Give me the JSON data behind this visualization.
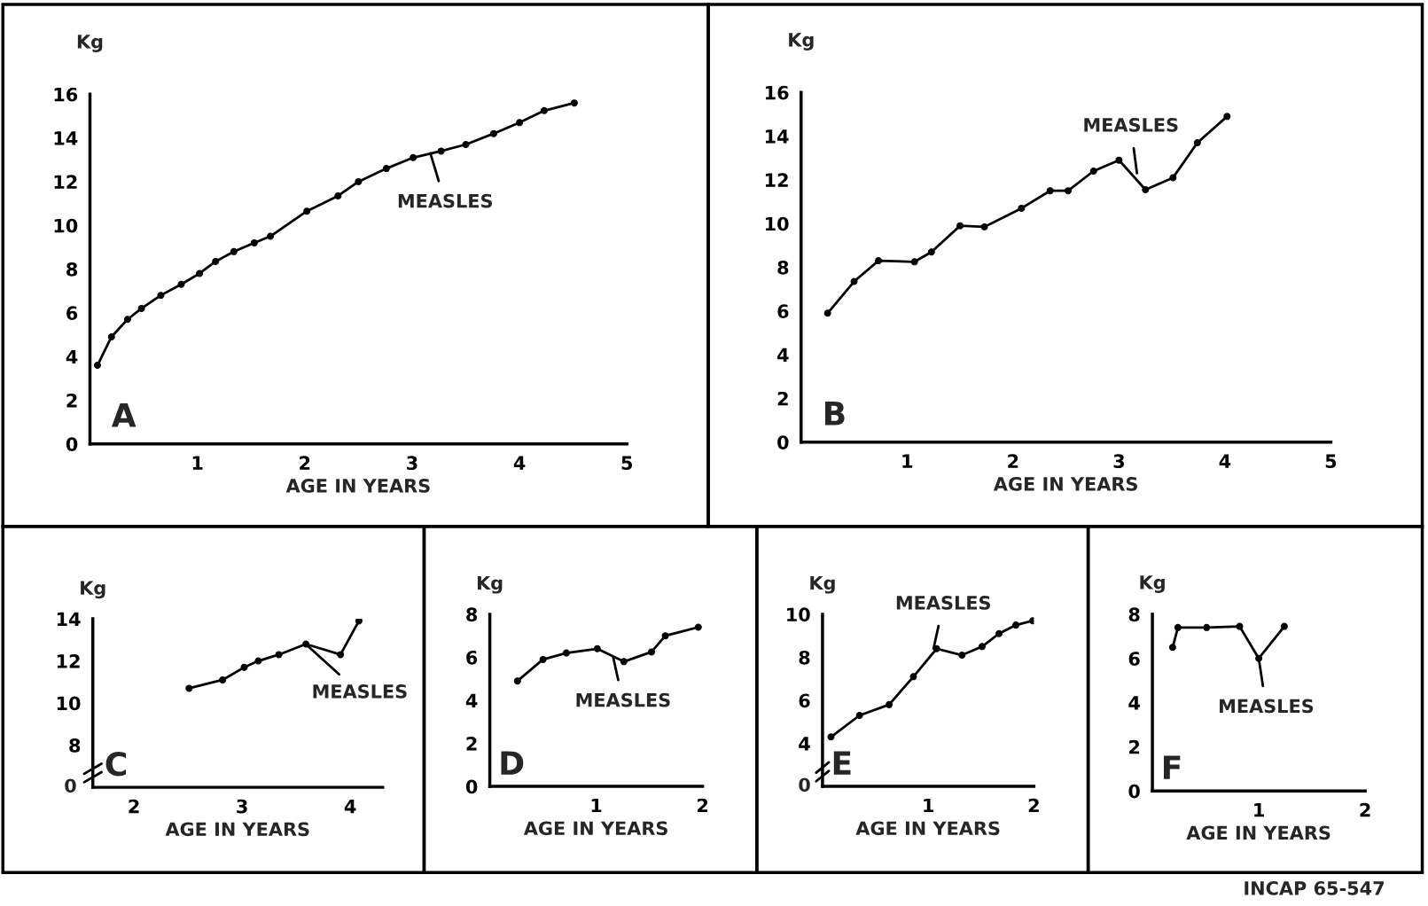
{
  "chart_data": [
    {
      "type": "line",
      "xlabel": "AGE IN YEARS",
      "ylabel": "Kg",
      "xlim": [
        0,
        5
      ],
      "ylim": [
        0,
        16
      ],
      "xticks": [
        1,
        2,
        3,
        4,
        5
      ],
      "yticks": [
        0,
        2,
        4,
        6,
        8,
        10,
        12,
        14,
        16
      ],
      "marker": "circle",
      "line_style": "solid",
      "x": [
        0.07,
        0.2,
        0.35,
        0.48,
        0.66,
        0.85,
        1.02,
        1.17,
        1.34,
        1.53,
        1.68,
        2.02,
        2.31,
        2.5,
        2.76,
        3.01,
        3.27,
        3.5,
        3.76,
        4.0,
        4.23,
        4.51
      ],
      "series": [
        {
          "color": "#000000",
          "values": [
            3.6,
            4.9,
            5.7,
            6.2,
            6.8,
            7.3,
            7.8,
            8.35,
            8.8,
            9.2,
            9.5,
            10.65,
            11.35,
            12.0,
            12.6,
            13.1,
            13.4,
            13.7,
            14.2,
            14.7,
            15.25,
            15.6
          ]
        }
      ],
      "annotations": [
        "A",
        {
          "text": "MEASLES",
          "x": 3.17,
          "y": 13.3
        }
      ]
    },
    {
      "type": "line",
      "xlabel": "AGE IN YEARS",
      "ylabel": "Kg",
      "xlim": [
        0,
        5
      ],
      "ylim": [
        0,
        16
      ],
      "xticks": [
        1,
        2,
        3,
        4,
        5
      ],
      "yticks": [
        0,
        2,
        4,
        6,
        8,
        10,
        12,
        14,
        16
      ],
      "marker": "circle",
      "line_style": "solid",
      "x": [
        0.25,
        0.5,
        0.73,
        1.07,
        1.23,
        1.5,
        1.73,
        2.08,
        2.35,
        2.52,
        2.76,
        3.0,
        3.25,
        3.51,
        3.74,
        4.02
      ],
      "series": [
        {
          "color": "#000000",
          "values": [
            5.9,
            7.35,
            8.3,
            8.25,
            8.7,
            9.9,
            9.85,
            10.7,
            11.5,
            11.5,
            12.4,
            12.9,
            11.55,
            12.1,
            13.7,
            14.9
          ]
        }
      ],
      "annotations": [
        "B",
        {
          "text": "MEASLES",
          "x": 3.17,
          "y": 12.3
        }
      ]
    },
    {
      "type": "line",
      "xlabel": "AGE IN YEARS",
      "ylabel": "Kg",
      "xlim": [
        1.62,
        4.3
      ],
      "xticks": [
        2,
        3,
        4
      ],
      "ylim": [
        6,
        14
      ],
      "yticks": [
        8,
        10,
        12,
        14
      ],
      "marker": "circle",
      "line_style": "solid",
      "x": [
        2.51,
        2.82,
        3.02,
        3.15,
        3.34,
        3.59,
        3.91,
        4.08
      ],
      "series": [
        {
          "color": "#000000",
          "values": [
            10.7,
            11.1,
            11.7,
            12.0,
            12.3,
            12.8,
            12.3,
            13.9
          ]
        }
      ],
      "annotations": [
        "C",
        "0",
        {
          "text": "MEASLES",
          "x": 3.61,
          "y": 12.7
        }
      ]
    },
    {
      "type": "line",
      "xlabel": "AGE IN YEARS",
      "ylabel": "Kg",
      "xlim": [
        0,
        2
      ],
      "ylim": [
        0,
        8
      ],
      "xticks": [
        1,
        2
      ],
      "yticks": [
        0,
        2,
        4,
        6,
        8
      ],
      "marker": "circle",
      "line_style": "solid",
      "x": [
        0.26,
        0.5,
        0.72,
        1.01,
        1.26,
        1.52,
        1.65,
        1.96
      ],
      "series": [
        {
          "color": "#000000",
          "values": [
            4.9,
            5.9,
            6.2,
            6.4,
            5.8,
            6.25,
            7.0,
            7.4
          ]
        }
      ],
      "annotations": [
        "D",
        {
          "text": "MEASLES",
          "x": 1.16,
          "y": 6.0
        }
      ]
    },
    {
      "type": "line",
      "xlabel": "AGE IN YEARS",
      "ylabel": "Kg",
      "xlim": [
        0,
        2
      ],
      "ylim": [
        2,
        10
      ],
      "xticks": [
        1,
        2
      ],
      "yticks": [
        4,
        6,
        8,
        10
      ],
      "marker": "circle",
      "line_style": "solid",
      "x": [
        0.08,
        0.35,
        0.63,
        0.86,
        1.08,
        1.32,
        1.51,
        1.67,
        1.83,
        1.99
      ],
      "series": [
        {
          "color": "#000000",
          "values": [
            4.3,
            5.3,
            5.8,
            7.1,
            8.4,
            8.1,
            8.5,
            9.1,
            9.5,
            9.7
          ]
        }
      ],
      "annotations": [
        "E",
        "0",
        {
          "text": "MEASLES",
          "x": 1.05,
          "y": 8.4
        }
      ]
    },
    {
      "type": "line",
      "xlabel": "AGE IN YEARS",
      "ylabel": "Kg",
      "xlim": [
        0,
        2
      ],
      "ylim": [
        0,
        8
      ],
      "xticks": [
        1,
        2
      ],
      "yticks": [
        0,
        2,
        4,
        6,
        8
      ],
      "marker": "circle",
      "line_style": "solid",
      "x": [
        0.19,
        0.24,
        0.51,
        0.82,
        1.0,
        1.24
      ],
      "series": [
        {
          "color": "#000000",
          "values": [
            6.5,
            7.4,
            7.4,
            7.45,
            6.0,
            7.45
          ]
        }
      ],
      "annotations": [
        "F",
        {
          "text": "MEASLES",
          "x": 1.0,
          "y": 6.0
        },
        "INCAP 65-547"
      ]
    }
  ]
}
